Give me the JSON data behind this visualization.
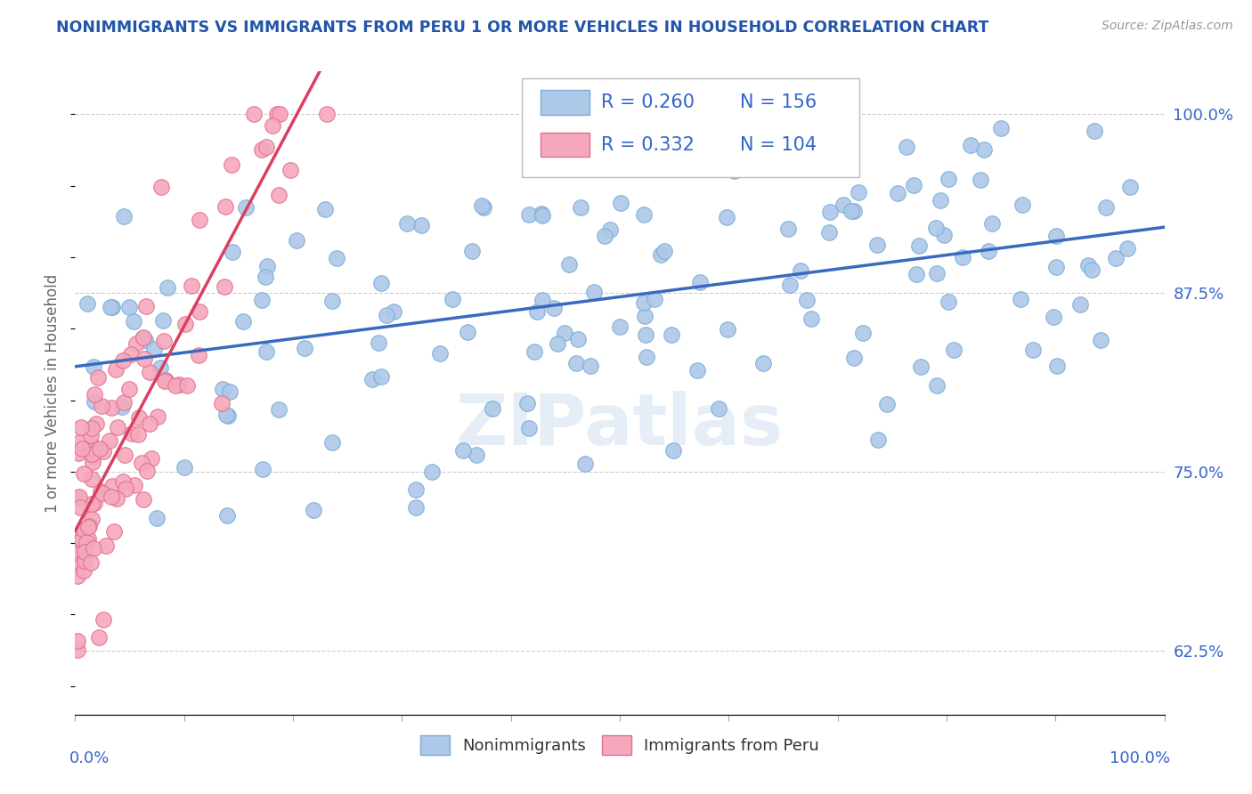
{
  "title": "NONIMMIGRANTS VS IMMIGRANTS FROM PERU 1 OR MORE VEHICLES IN HOUSEHOLD CORRELATION CHART",
  "source": "Source: ZipAtlas.com",
  "ylabel": "1 or more Vehicles in Household",
  "xlim": [
    0,
    100
  ],
  "ylim": [
    58,
    103
  ],
  "yticks_right": [
    62.5,
    75.0,
    87.5,
    100.0
  ],
  "legend_r1": "R = 0.260",
  "legend_n1": "N = 156",
  "legend_r2": "R = 0.332",
  "legend_n2": "N = 104",
  "blue_color": "#adc8e8",
  "pink_color": "#f5a8bc",
  "blue_edge": "#7aadd4",
  "pink_edge": "#e07090",
  "trendline_blue": "#3a6abf",
  "trendline_pink": "#d94060",
  "text_color": "#3366cc",
  "title_color": "#2255aa",
  "watermark": "ZIPatlas"
}
